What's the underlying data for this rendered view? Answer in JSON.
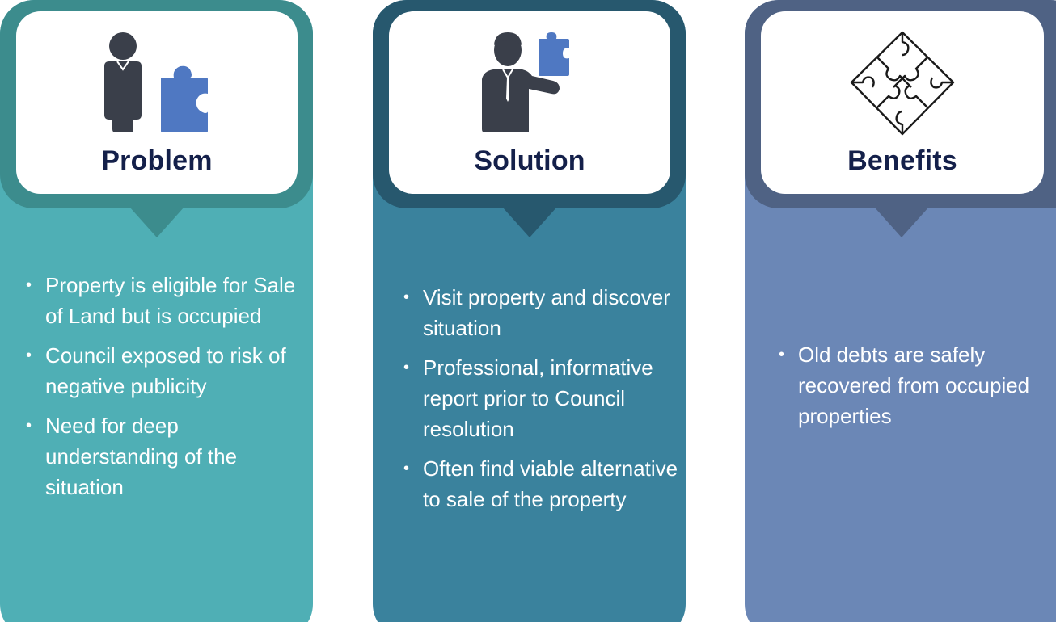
{
  "columns": [
    {
      "title": "Problem",
      "icon": "person-with-puzzle-piece-icon",
      "bullets": [
        "Property is eligible for Sale of Land but is occupied",
        "Council exposed to risk of negative publicity",
        "Need for deep understanding of the situation"
      ]
    },
    {
      "title": "Solution",
      "icon": "businessman-holding-puzzle-piece-icon",
      "bullets": [
        "Visit property and discover situation",
        "Professional, informative report prior to Council resolution",
        "Often find viable alternative to sale of the property"
      ]
    },
    {
      "title": "Benefits",
      "icon": "interlocking-puzzle-pieces-icon",
      "bullets": [
        "Old debts are safely recovered from occupied properties"
      ]
    }
  ],
  "colors": {
    "problem_body": "#4fafb5",
    "problem_header": "#3c8c8d",
    "solution_body": "#3a829d",
    "solution_header": "#27586e",
    "benefits_body": "#6b87b6",
    "benefits_header": "#4f6284",
    "title_text": "#14204a",
    "icon_dark": "#3a3f4a",
    "icon_blue": "#4f78c2"
  }
}
